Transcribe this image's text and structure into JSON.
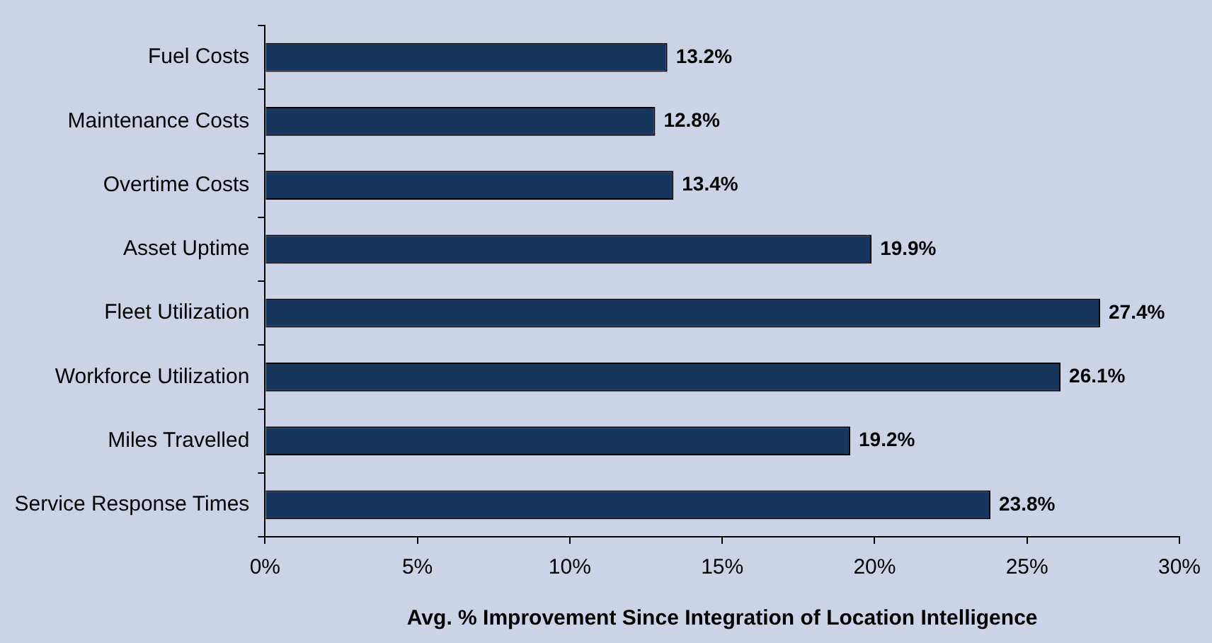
{
  "chart_data": {
    "type": "bar",
    "orientation": "horizontal",
    "xlabel": "Avg. % Improvement Since Integration of Location Intelligence",
    "categories": [
      "Fuel Costs",
      "Maintenance Costs",
      "Overtime Costs",
      "Asset Uptime",
      "Fleet Utilization",
      "Workforce Utilization",
      "Miles Travelled",
      "Service Response Times"
    ],
    "values": [
      13.2,
      12.8,
      13.4,
      19.9,
      27.4,
      26.1,
      19.2,
      23.8
    ],
    "value_labels": [
      "13.2%",
      "12.8%",
      "13.4%",
      "19.9%",
      "27.4%",
      "26.1%",
      "19.2%",
      "23.8%"
    ],
    "color": "#17365d",
    "xlim": [
      0,
      30
    ],
    "xticks": [
      {
        "value": 0,
        "label": "0%"
      },
      {
        "value": 5,
        "label": "5%"
      },
      {
        "value": 10,
        "label": "10%"
      },
      {
        "value": 15,
        "label": "15%"
      },
      {
        "value": 20,
        "label": "20%"
      },
      {
        "value": 25,
        "label": "25%"
      },
      {
        "value": 30,
        "label": "30%"
      }
    ]
  }
}
